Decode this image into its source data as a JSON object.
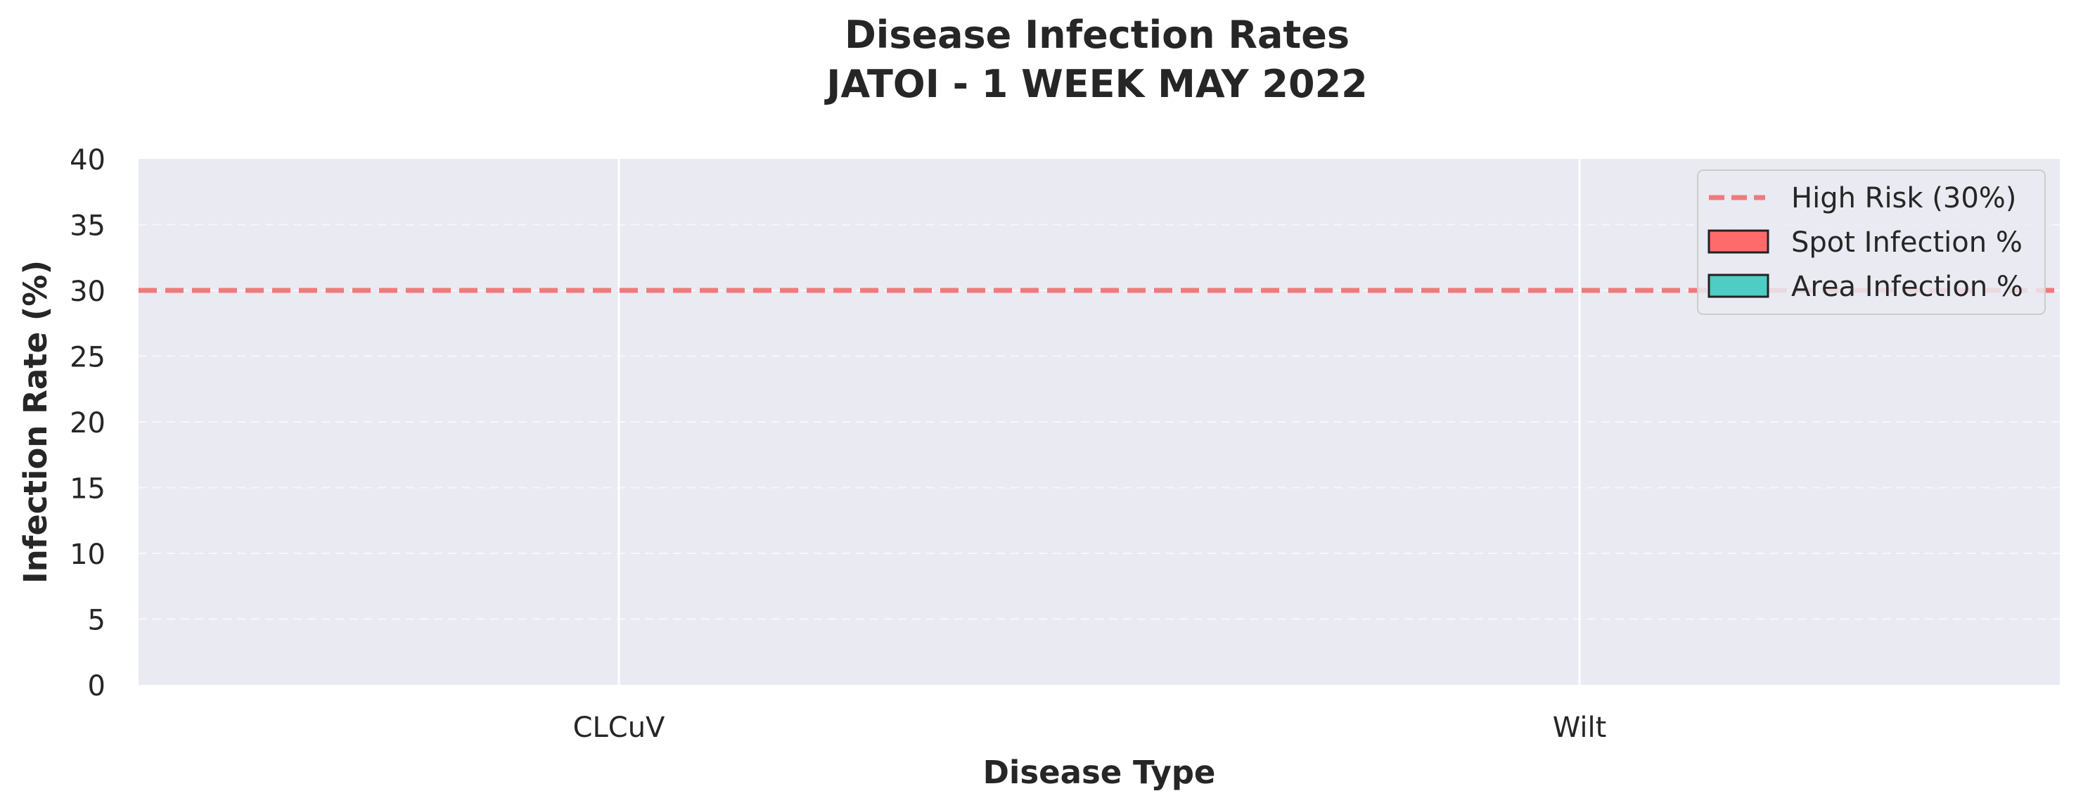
{
  "chart_data": {
    "type": "bar",
    "title": "Disease Infection Rates",
    "subtitle": "JATOI - 1 WEEK MAY 2022",
    "xlabel": "Disease Type",
    "ylabel": "Infection Rate (%)",
    "categories": [
      "CLCuV",
      "Wilt"
    ],
    "series": [
      {
        "name": "Spot Infection %",
        "values": [
          0,
          0
        ],
        "color": "#FF6B6B"
      },
      {
        "name": "Area Infection %",
        "values": [
          0,
          0
        ],
        "color": "#4ECDC4"
      }
    ],
    "reference_line": {
      "name": "High Risk (30%)",
      "value": 30,
      "color": "#F07A7A",
      "style": "dashed"
    },
    "ylim": [
      0,
      40
    ],
    "yticks": [
      0,
      5,
      10,
      15,
      20,
      25,
      30,
      35,
      40
    ],
    "grid": true,
    "legend_position": "top-right",
    "plot_background": "#EAEAF2"
  }
}
